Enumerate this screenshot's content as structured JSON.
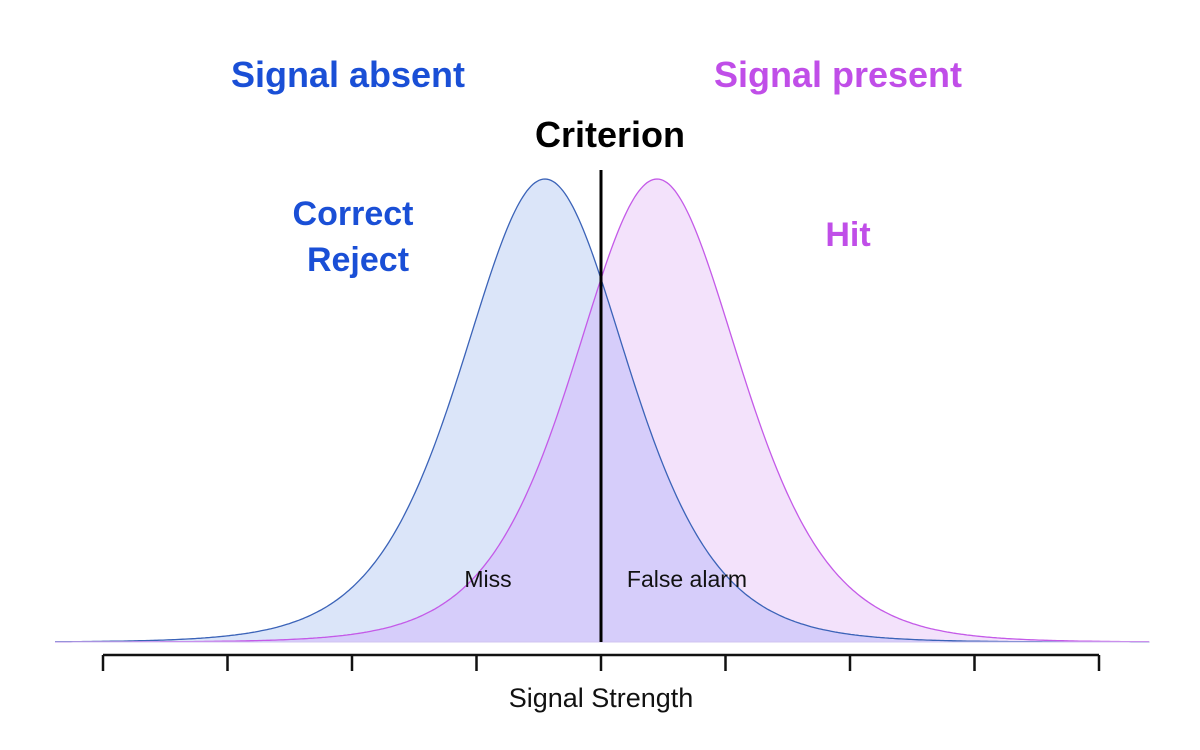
{
  "colors": {
    "absent": "#1a4fd6",
    "present": "#c04ee8",
    "absent_fill": "#dbe5f9",
    "present_fill": "#f3e2fb",
    "overlap_fill": "#d6cdfa",
    "absent_stroke": "#3b63b8",
    "present_stroke": "#c45ae8",
    "criterion": "#000000"
  },
  "labels": {
    "signal_absent": "Signal absent",
    "signal_present": "Signal present",
    "criterion": "Criterion",
    "correct_reject_line1": "Correct",
    "correct_reject_line2": "Reject",
    "hit": "Hit",
    "miss": "Miss",
    "false_alarm": "False alarm",
    "x_axis": "Signal Strength"
  },
  "distributions": {
    "absent": {
      "mean": 3.55,
      "sd": 0.85
    },
    "present": {
      "mean": 4.45,
      "sd": 0.85
    },
    "criterion": 4.0,
    "x_range": [
      0,
      8
    ],
    "tick_count": 9
  }
}
